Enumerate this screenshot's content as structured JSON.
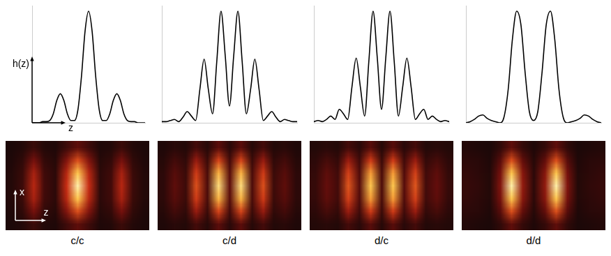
{
  "chart_data": [
    {
      "type": "line",
      "x_label": "z",
      "y_label": "h(z)",
      "color": "#000000",
      "tick_labels": false,
      "grid": false,
      "xlim": [
        -16,
        16
      ],
      "ylim": [
        0,
        1.05
      ],
      "x": [
        -16,
        -15,
        -14,
        -13,
        -12,
        -11,
        -10,
        -9,
        -8,
        -7,
        -6,
        -5,
        -4,
        -3,
        -2,
        -1,
        0,
        1,
        2,
        3,
        4,
        5,
        6,
        7,
        8,
        9,
        10,
        11,
        12,
        13,
        14,
        15,
        16
      ],
      "values": [
        0,
        0,
        0,
        0.01,
        0.01,
        0.02,
        0.08,
        0.2,
        0.26,
        0.2,
        0.08,
        0.02,
        0.02,
        0.12,
        0.42,
        0.82,
        1,
        0.82,
        0.42,
        0.12,
        0.02,
        0.02,
        0.08,
        0.2,
        0.26,
        0.2,
        0.08,
        0.02,
        0.01,
        0.01,
        0,
        0,
        0
      ]
    },
    {
      "type": "heatmap",
      "title": "c/c",
      "x_label": "z",
      "y_label": "x",
      "tick_labels": false,
      "xlim": [
        -13,
        13
      ],
      "ylim": [
        -3.5,
        3.5
      ],
      "x": [
        -12,
        -10,
        -8,
        -6,
        -4,
        -2,
        0,
        2,
        4,
        6,
        8,
        10,
        12
      ],
      "y": [
        -3,
        -2,
        -1,
        0,
        1,
        2,
        3
      ],
      "cells": [
        [
          0,
          0.02,
          0.09,
          0.02,
          0.01,
          0.1,
          0.2,
          0.1,
          0.01,
          0.02,
          0.09,
          0.02,
          0
        ],
        [
          0.01,
          0.06,
          0.27,
          0.07,
          0.03,
          0.3,
          0.6,
          0.3,
          0.03,
          0.07,
          0.27,
          0.06,
          0.01
        ],
        [
          0.02,
          0.09,
          0.41,
          0.11,
          0.05,
          0.45,
          0.9,
          0.45,
          0.05,
          0.11,
          0.41,
          0.09,
          0.02
        ],
        [
          0.02,
          0.1,
          0.45,
          0.12,
          0.05,
          0.5,
          1,
          0.5,
          0.05,
          0.12,
          0.45,
          0.1,
          0.02
        ],
        [
          0.02,
          0.09,
          0.41,
          0.11,
          0.05,
          0.45,
          0.9,
          0.45,
          0.05,
          0.11,
          0.41,
          0.09,
          0.02
        ],
        [
          0.01,
          0.06,
          0.27,
          0.07,
          0.03,
          0.3,
          0.6,
          0.3,
          0.03,
          0.07,
          0.27,
          0.06,
          0.01
        ],
        [
          0,
          0.02,
          0.09,
          0.02,
          0.01,
          0.1,
          0.2,
          0.1,
          0.01,
          0.02,
          0.09,
          0.02,
          0
        ]
      ]
    },
    {
      "type": "line",
      "color": "#000000",
      "tick_labels": false,
      "grid": false,
      "xlim": [
        -16,
        16
      ],
      "ylim": [
        0,
        1.05
      ],
      "x": [
        -16,
        -15,
        -14,
        -13,
        -12,
        -11,
        -10,
        -9,
        -8,
        -7,
        -6,
        -5,
        -4,
        -3,
        -2,
        -1,
        0,
        1,
        2,
        3,
        4,
        5,
        6,
        7,
        8,
        9,
        10,
        11,
        12,
        13,
        14,
        15,
        16
      ],
      "values": [
        0.01,
        0.01,
        0.02,
        0.03,
        0.01,
        0.05,
        0.1,
        0.06,
        0.02,
        0.3,
        0.57,
        0.3,
        0.08,
        0.55,
        1,
        0.6,
        0.15,
        0.6,
        1,
        0.55,
        0.08,
        0.3,
        0.57,
        0.3,
        0.02,
        0.06,
        0.1,
        0.05,
        0.01,
        0.03,
        0.02,
        0.01,
        0.01
      ]
    },
    {
      "type": "heatmap",
      "title": "c/d",
      "tick_labels": false,
      "xlim": [
        -13,
        13
      ],
      "ylim": [
        -3.5,
        3.5
      ],
      "x": [
        -12,
        -10,
        -8,
        -6,
        -4,
        -2,
        0,
        2,
        4,
        6,
        8,
        10,
        12
      ],
      "y": [
        -3,
        -2,
        -1,
        0,
        1,
        2,
        3
      ],
      "cells": [
        [
          0.01,
          0.04,
          0.02,
          0.12,
          0.03,
          0.19,
          0.04,
          0.19,
          0.03,
          0.12,
          0.02,
          0.04,
          0.01
        ],
        [
          0.03,
          0.12,
          0.06,
          0.36,
          0.09,
          0.57,
          0.12,
          0.57,
          0.09,
          0.36,
          0.06,
          0.12,
          0.03
        ],
        [
          0.05,
          0.18,
          0.09,
          0.54,
          0.14,
          0.86,
          0.18,
          0.86,
          0.14,
          0.54,
          0.09,
          0.18,
          0.05
        ],
        [
          0.05,
          0.2,
          0.1,
          0.6,
          0.15,
          0.95,
          0.2,
          0.95,
          0.15,
          0.6,
          0.1,
          0.2,
          0.05
        ],
        [
          0.05,
          0.18,
          0.09,
          0.54,
          0.14,
          0.86,
          0.18,
          0.86,
          0.14,
          0.54,
          0.09,
          0.18,
          0.05
        ],
        [
          0.03,
          0.12,
          0.06,
          0.36,
          0.09,
          0.57,
          0.12,
          0.57,
          0.09,
          0.36,
          0.06,
          0.12,
          0.03
        ],
        [
          0.01,
          0.04,
          0.02,
          0.12,
          0.03,
          0.19,
          0.04,
          0.19,
          0.03,
          0.12,
          0.02,
          0.04,
          0.01
        ]
      ]
    },
    {
      "type": "line",
      "color": "#000000",
      "tick_labels": false,
      "grid": false,
      "xlim": [
        -16,
        16
      ],
      "ylim": [
        0,
        1.05
      ],
      "x": [
        -16,
        -15,
        -14,
        -13,
        -12,
        -11,
        -10,
        -9,
        -8,
        -7,
        -6,
        -5,
        -4,
        -3,
        -2,
        -1,
        0,
        1,
        2,
        3,
        4,
        5,
        6,
        7,
        8,
        9,
        10,
        11,
        12,
        13,
        14,
        15,
        16
      ],
      "values": [
        0.01,
        0.02,
        0.01,
        0.03,
        0.06,
        0.03,
        0.12,
        0.08,
        0.03,
        0.32,
        0.58,
        0.32,
        0.06,
        0.55,
        1,
        0.58,
        0.12,
        0.58,
        1,
        0.55,
        0.06,
        0.32,
        0.58,
        0.32,
        0.03,
        0.08,
        0.12,
        0.03,
        0.06,
        0.03,
        0.01,
        0.02,
        0.01
      ]
    },
    {
      "type": "heatmap",
      "title": "d/c",
      "tick_labels": false,
      "xlim": [
        -13,
        13
      ],
      "ylim": [
        -3.5,
        3.5
      ],
      "x": [
        -12,
        -10,
        -8,
        -6,
        -4,
        -2,
        0,
        2,
        4,
        6,
        8,
        10,
        12
      ],
      "y": [
        -3,
        -2,
        -1,
        0,
        1,
        2,
        3
      ],
      "cells": [
        [
          0.02,
          0.04,
          0.02,
          0.12,
          0.04,
          0.18,
          0.03,
          0.18,
          0.04,
          0.12,
          0.02,
          0.04,
          0.02
        ],
        [
          0.05,
          0.13,
          0.07,
          0.37,
          0.11,
          0.54,
          0.09,
          0.54,
          0.11,
          0.37,
          0.07,
          0.13,
          0.05
        ],
        [
          0.07,
          0.2,
          0.11,
          0.56,
          0.16,
          0.81,
          0.14,
          0.81,
          0.16,
          0.56,
          0.11,
          0.2,
          0.07
        ],
        [
          0.08,
          0.22,
          0.12,
          0.62,
          0.18,
          0.9,
          0.15,
          0.9,
          0.18,
          0.62,
          0.12,
          0.22,
          0.08
        ],
        [
          0.07,
          0.2,
          0.11,
          0.56,
          0.16,
          0.81,
          0.14,
          0.81,
          0.16,
          0.56,
          0.11,
          0.2,
          0.07
        ],
        [
          0.05,
          0.13,
          0.07,
          0.37,
          0.11,
          0.54,
          0.09,
          0.54,
          0.11,
          0.37,
          0.07,
          0.13,
          0.05
        ],
        [
          0.02,
          0.04,
          0.02,
          0.12,
          0.04,
          0.18,
          0.03,
          0.18,
          0.04,
          0.12,
          0.02,
          0.04,
          0.02
        ]
      ]
    },
    {
      "type": "line",
      "color": "#000000",
      "tick_labels": false,
      "grid": false,
      "xlim": [
        -16,
        16
      ],
      "ylim": [
        0,
        1.05
      ],
      "x": [
        -16,
        -15,
        -14,
        -13,
        -12,
        -11,
        -10,
        -9,
        -8,
        -7,
        -6,
        -5,
        -4,
        -3,
        -2,
        -1,
        0,
        1,
        2,
        3,
        4,
        5,
        6,
        7,
        8,
        9,
        10,
        11,
        12,
        13,
        14,
        15,
        16
      ],
      "values": [
        0,
        0.01,
        0.03,
        0.06,
        0.07,
        0.04,
        0.02,
        0.01,
        0,
        0.05,
        0.3,
        0.75,
        1,
        0.88,
        0.45,
        0.1,
        0.02,
        0.1,
        0.45,
        0.88,
        1,
        0.75,
        0.3,
        0.05,
        0,
        0.01,
        0.02,
        0.04,
        0.07,
        0.06,
        0.03,
        0.01,
        0
      ]
    },
    {
      "type": "heatmap",
      "title": "d/d",
      "tick_labels": false,
      "xlim": [
        -13,
        13
      ],
      "ylim": [
        -3.5,
        3.5
      ],
      "x": [
        -12,
        -10,
        -8,
        -6,
        -4,
        -2,
        0,
        2,
        4,
        6,
        8,
        10,
        12
      ],
      "y": [
        -3,
        -2,
        -1,
        0,
        1,
        2,
        3
      ],
      "cells": [
        [
          0.02,
          0.01,
          0,
          0.06,
          0.2,
          0.07,
          0.01,
          0.07,
          0.2,
          0.06,
          0,
          0.01,
          0.02
        ],
        [
          0.05,
          0.04,
          0.01,
          0.18,
          0.6,
          0.21,
          0.03,
          0.21,
          0.6,
          0.18,
          0.01,
          0.04,
          0.05
        ],
        [
          0.07,
          0.05,
          0.02,
          0.27,
          0.9,
          0.32,
          0.05,
          0.32,
          0.9,
          0.27,
          0.02,
          0.05,
          0.07
        ],
        [
          0.08,
          0.06,
          0.02,
          0.3,
          1,
          0.35,
          0.05,
          0.35,
          1,
          0.3,
          0.02,
          0.06,
          0.08
        ],
        [
          0.07,
          0.05,
          0.02,
          0.27,
          0.9,
          0.32,
          0.05,
          0.32,
          0.9,
          0.27,
          0.02,
          0.05,
          0.07
        ],
        [
          0.05,
          0.04,
          0.01,
          0.18,
          0.6,
          0.21,
          0.03,
          0.21,
          0.6,
          0.18,
          0.01,
          0.04,
          0.05
        ],
        [
          0.02,
          0.01,
          0,
          0.06,
          0.2,
          0.07,
          0.01,
          0.07,
          0.2,
          0.06,
          0,
          0.01,
          0.02
        ]
      ]
    }
  ]
}
